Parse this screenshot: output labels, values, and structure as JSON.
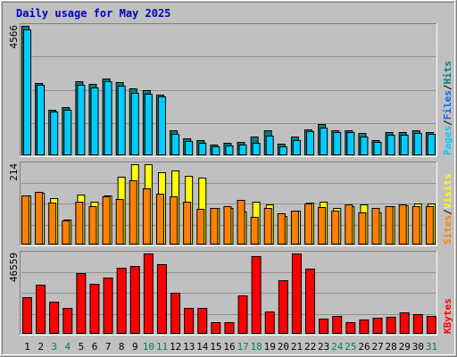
{
  "title": "Daily usage for May 2025",
  "colors": {
    "background": "#c0c0c0",
    "frame_light": "#ffffff",
    "frame_dark": "#808080",
    "pages": "#00ccff",
    "files": "#0066ff",
    "hits": "#008080",
    "sites": "#ff8000",
    "visits": "#ffff00",
    "kbytes": "#ff0000",
    "weekend_day": "#00805c",
    "weekday_day": "#000000",
    "title": "#0000cc"
  },
  "chart_data": [
    {
      "type": "bar",
      "name": "pages-files-hits",
      "ymax_label": "4566",
      "ylim": [
        0,
        4566
      ],
      "legend_parts": [
        {
          "text": "Pages",
          "color": "#00ccff"
        },
        {
          "text": "/",
          "color": "#000000"
        },
        {
          "text": "Files",
          "color": "#0066ff"
        },
        {
          "text": "/",
          "color": "#000000"
        },
        {
          "text": "Hits",
          "color": "#008080"
        }
      ],
      "categories": [
        "1",
        "2",
        "3",
        "4",
        "5",
        "6",
        "7",
        "8",
        "9",
        "10",
        "11",
        "12",
        "13",
        "14",
        "15",
        "16",
        "17",
        "18",
        "19",
        "20",
        "21",
        "22",
        "23",
        "24",
        "25",
        "26",
        "27",
        "28",
        "29",
        "30",
        "31"
      ],
      "series": [
        {
          "name": "Hits",
          "values": [
            4566,
            2530,
            1600,
            1670,
            2600,
            2520,
            2710,
            2560,
            2360,
            2290,
            2140,
            870,
            570,
            510,
            360,
            420,
            450,
            630,
            860,
            390,
            620,
            880,
            1090,
            850,
            850,
            760,
            510,
            780,
            780,
            860,
            800
          ]
        },
        {
          "name": "Pages",
          "values": [
            4430,
            2470,
            1530,
            1600,
            2480,
            2390,
            2610,
            2440,
            2200,
            2150,
            2070,
            740,
            490,
            420,
            300,
            330,
            360,
            400,
            660,
            290,
            510,
            810,
            960,
            780,
            790,
            640,
            430,
            710,
            700,
            770,
            730
          ]
        }
      ]
    },
    {
      "type": "bar",
      "name": "sites-visits",
      "ymax_label": "214",
      "ylim": [
        0,
        214
      ],
      "legend_parts": [
        {
          "text": "Sites",
          "color": "#ff8000"
        },
        {
          "text": "/",
          "color": "#000000"
        },
        {
          "text": "Visits",
          "color": "#ffff00"
        }
      ],
      "categories": [
        "1",
        "2",
        "3",
        "4",
        "5",
        "6",
        "7",
        "8",
        "9",
        "10",
        "11",
        "12",
        "13",
        "14",
        "15",
        "16",
        "17",
        "18",
        "19",
        "20",
        "21",
        "22",
        "23",
        "24",
        "25",
        "26",
        "27",
        "28",
        "29",
        "30",
        "31"
      ],
      "series": [
        {
          "name": "Visits",
          "values": [
            130,
            138,
            122,
            65,
            132,
            112,
            130,
            181,
            214,
            214,
            193,
            198,
            182,
            177,
            95,
            96,
            86,
            112,
            106,
            75,
            90,
            110,
            114,
            97,
            100,
            105,
            84,
            102,
            104,
            108,
            108
          ]
        },
        {
          "name": "Sites",
          "values": [
            129,
            139,
            111,
            63,
            112,
            102,
            127,
            120,
            170,
            150,
            135,
            128,
            112,
            94,
            95,
            100,
            118,
            72,
            97,
            81,
            88,
            108,
            98,
            88,
            106,
            85,
            95,
            100,
            106,
            100,
            100
          ]
        }
      ]
    },
    {
      "type": "bar",
      "name": "kbytes",
      "ymax_label": "46559",
      "ylim": [
        0,
        46559
      ],
      "legend_parts": [
        {
          "text": "KBytes",
          "color": "#ff0000"
        }
      ],
      "categories": [
        "1",
        "2",
        "3",
        "4",
        "5",
        "6",
        "7",
        "8",
        "9",
        "10",
        "11",
        "12",
        "13",
        "14",
        "15",
        "16",
        "17",
        "18",
        "19",
        "20",
        "21",
        "22",
        "23",
        "24",
        "25",
        "26",
        "27",
        "28",
        "29",
        "30",
        "31"
      ],
      "series": [
        {
          "name": "KBytes",
          "values": [
            20800,
            28500,
            18100,
            14800,
            35000,
            28700,
            32600,
            38100,
            39200,
            46559,
            40400,
            23600,
            14900,
            14400,
            6300,
            6200,
            22000,
            45000,
            12600,
            30800,
            46559,
            37800,
            8600,
            9900,
            6300,
            7600,
            8900,
            9600,
            11800,
            11000,
            10000
          ]
        }
      ]
    }
  ]
}
